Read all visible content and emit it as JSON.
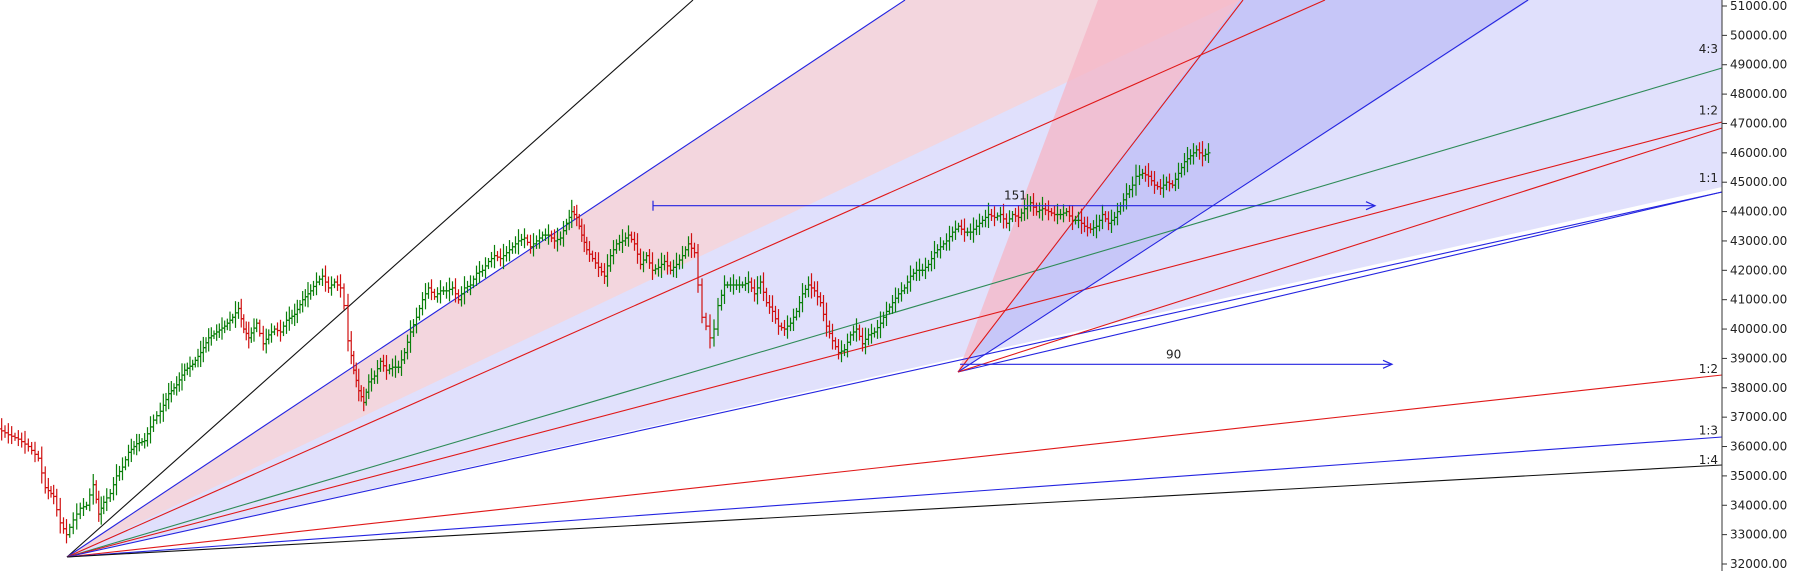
{
  "chart_data": {
    "type": "candlestick",
    "ylim": [
      31932,
      51108
    ],
    "price_axis": {
      "ticks": [
        51000,
        50000,
        49000,
        48000,
        47000,
        46000,
        45000,
        44000,
        43000,
        42000,
        41000,
        40000,
        39000,
        38000,
        37000,
        36000,
        35000,
        34000,
        33000,
        32000
      ],
      "tick_labels": [
        "51000.00",
        "50000.00",
        "49000.00",
        "48000.00",
        "47000.00",
        "46000.00",
        "45000.00",
        "44000.00",
        "43000.00",
        "42000.00",
        "41000.00",
        "40000.00",
        "39000.00",
        "38000.00",
        "37000.00",
        "36000.00",
        "35000.00",
        "34000.00",
        "33000.00",
        "32000.00"
      ]
    },
    "up_color": "#0a7f0a",
    "down_color": "#d01010",
    "price_path": [
      [
        0,
        36600
      ],
      [
        10,
        36400
      ],
      [
        20,
        36250
      ],
      [
        30,
        36000
      ],
      [
        40,
        35600
      ],
      [
        47,
        34600
      ],
      [
        55,
        34300
      ],
      [
        62,
        33400
      ],
      [
        68,
        33000
      ],
      [
        75,
        33500
      ],
      [
        82,
        33900
      ],
      [
        88,
        34000
      ],
      [
        95,
        34700
      ],
      [
        100,
        33700
      ],
      [
        105,
        34100
      ],
      [
        112,
        34400
      ],
      [
        118,
        35000
      ],
      [
        124,
        35300
      ],
      [
        130,
        35800
      ],
      [
        138,
        36100
      ],
      [
        146,
        36200
      ],
      [
        155,
        36900
      ],
      [
        162,
        37200
      ],
      [
        170,
        37800
      ],
      [
        178,
        38100
      ],
      [
        186,
        38600
      ],
      [
        194,
        38800
      ],
      [
        202,
        39200
      ],
      [
        210,
        39700
      ],
      [
        218,
        39900
      ],
      [
        226,
        40100
      ],
      [
        234,
        40400
      ],
      [
        240,
        40700
      ],
      [
        245,
        40000
      ],
      [
        250,
        39700
      ],
      [
        258,
        40200
      ],
      [
        265,
        39500
      ],
      [
        270,
        39800
      ],
      [
        276,
        40000
      ],
      [
        282,
        39900
      ],
      [
        288,
        40300
      ],
      [
        296,
        40500
      ],
      [
        304,
        41000
      ],
      [
        312,
        41300
      ],
      [
        318,
        41600
      ],
      [
        324,
        41800
      ],
      [
        330,
        41400
      ],
      [
        336,
        41600
      ],
      [
        342,
        41400
      ],
      [
        346,
        40800
      ],
      [
        350,
        39600
      ],
      [
        355,
        38600
      ],
      [
        360,
        37900
      ],
      [
        365,
        37500
      ],
      [
        370,
        38200
      ],
      [
        376,
        38400
      ],
      [
        382,
        38900
      ],
      [
        388,
        38600
      ],
      [
        394,
        38700
      ],
      [
        400,
        38700
      ],
      [
        406,
        39200
      ],
      [
        412,
        39900
      ],
      [
        418,
        40400
      ],
      [
        424,
        41000
      ],
      [
        430,
        41400
      ],
      [
        436,
        41100
      ],
      [
        442,
        41300
      ],
      [
        448,
        41300
      ],
      [
        454,
        41400
      ],
      [
        460,
        41000
      ],
      [
        466,
        41400
      ],
      [
        472,
        41500
      ],
      [
        478,
        41900
      ],
      [
        484,
        42000
      ],
      [
        490,
        42300
      ],
      [
        496,
        42500
      ],
      [
        502,
        42400
      ],
      [
        508,
        42600
      ],
      [
        514,
        42800
      ],
      [
        520,
        43000
      ],
      [
        526,
        43100
      ],
      [
        532,
        42800
      ],
      [
        538,
        43000
      ],
      [
        544,
        43200
      ],
      [
        550,
        43200
      ],
      [
        556,
        43000
      ],
      [
        562,
        43100
      ],
      [
        568,
        43600
      ],
      [
        573,
        44000
      ],
      [
        578,
        43800
      ],
      [
        583,
        43200
      ],
      [
        588,
        42700
      ],
      [
        594,
        42400
      ],
      [
        600,
        42100
      ],
      [
        606,
        41800
      ],
      [
        612,
        42500
      ],
      [
        618,
        42900
      ],
      [
        624,
        43000
      ],
      [
        630,
        43200
      ],
      [
        636,
        42900
      ],
      [
        642,
        42200
      ],
      [
        648,
        42500
      ],
      [
        654,
        42000
      ],
      [
        660,
        42100
      ],
      [
        666,
        42300
      ],
      [
        672,
        42000
      ],
      [
        678,
        42200
      ],
      [
        684,
        42500
      ],
      [
        690,
        42900
      ],
      [
        696,
        42600
      ],
      [
        700,
        41500
      ],
      [
        704,
        40400
      ],
      [
        708,
        40100
      ],
      [
        712,
        39700
      ],
      [
        716,
        40000
      ],
      [
        720,
        40800
      ],
      [
        726,
        41500
      ],
      [
        732,
        41500
      ],
      [
        738,
        41500
      ],
      [
        744,
        41500
      ],
      [
        750,
        41600
      ],
      [
        756,
        41200
      ],
      [
        762,
        41600
      ],
      [
        768,
        40900
      ],
      [
        774,
        40600
      ],
      [
        780,
        40100
      ],
      [
        786,
        40000
      ],
      [
        792,
        40200
      ],
      [
        798,
        40600
      ],
      [
        804,
        41200
      ],
      [
        810,
        41500
      ],
      [
        816,
        41300
      ],
      [
        822,
        40900
      ],
      [
        828,
        40100
      ],
      [
        834,
        39600
      ],
      [
        840,
        39200
      ],
      [
        846,
        39300
      ],
      [
        852,
        39800
      ],
      [
        858,
        40000
      ],
      [
        864,
        39500
      ],
      [
        870,
        39800
      ],
      [
        876,
        39900
      ],
      [
        882,
        40200
      ],
      [
        888,
        40600
      ],
      [
        894,
        40900
      ],
      [
        900,
        41200
      ],
      [
        906,
        41400
      ],
      [
        912,
        41800
      ],
      [
        918,
        42000
      ],
      [
        924,
        42000
      ],
      [
        930,
        42200
      ],
      [
        936,
        42600
      ],
      [
        942,
        42800
      ],
      [
        948,
        43000
      ],
      [
        954,
        43300
      ],
      [
        960,
        43500
      ],
      [
        966,
        43300
      ],
      [
        972,
        43300
      ],
      [
        978,
        43500
      ],
      [
        984,
        43700
      ],
      [
        990,
        43900
      ],
      [
        996,
        43800
      ],
      [
        1002,
        43900
      ],
      [
        1008,
        43600
      ],
      [
        1014,
        43900
      ],
      [
        1020,
        43800
      ],
      [
        1026,
        44100
      ],
      [
        1032,
        44300
      ],
      [
        1038,
        44000
      ],
      [
        1044,
        44100
      ],
      [
        1050,
        44000
      ],
      [
        1056,
        43900
      ],
      [
        1062,
        43900
      ],
      [
        1068,
        44000
      ],
      [
        1074,
        43700
      ],
      [
        1080,
        43700
      ],
      [
        1086,
        43500
      ],
      [
        1092,
        43400
      ],
      [
        1098,
        43500
      ],
      [
        1104,
        43900
      ],
      [
        1110,
        43600
      ],
      [
        1116,
        43800
      ],
      [
        1122,
        44200
      ],
      [
        1128,
        44600
      ],
      [
        1134,
        44900
      ],
      [
        1138,
        45200
      ],
      [
        1144,
        45300
      ],
      [
        1150,
        45200
      ],
      [
        1156,
        44900
      ],
      [
        1162,
        44800
      ],
      [
        1168,
        45000
      ],
      [
        1174,
        44900
      ],
      [
        1180,
        45300
      ],
      [
        1186,
        45700
      ],
      [
        1192,
        45900
      ],
      [
        1198,
        46100
      ],
      [
        1204,
        45900
      ],
      [
        1210,
        46000
      ]
    ],
    "gann_fan_low": {
      "label_1x1": "1:1",
      "labels_right": [
        "4:3",
        "1:2",
        "1:1",
        "1:2",
        "1:3",
        "1:4"
      ]
    },
    "annotations": [
      {
        "text": "151",
        "from_x_bar": 573,
        "to_x_bar": 1205,
        "price": 44200
      },
      {
        "text": "90",
        "from_x_bar": 840,
        "to_x_bar": 1217,
        "price": 38800
      }
    ],
    "fan_labels": [
      {
        "text": "4:3",
        "price": 49300
      },
      {
        "text": "1:2",
        "price": 47200
      },
      {
        "text": "1:1",
        "price": 44900
      },
      {
        "text": "1:2",
        "price": 38400
      },
      {
        "text": "1:3",
        "price": 36300
      },
      {
        "text": "1:4",
        "price": 35300
      }
    ]
  }
}
